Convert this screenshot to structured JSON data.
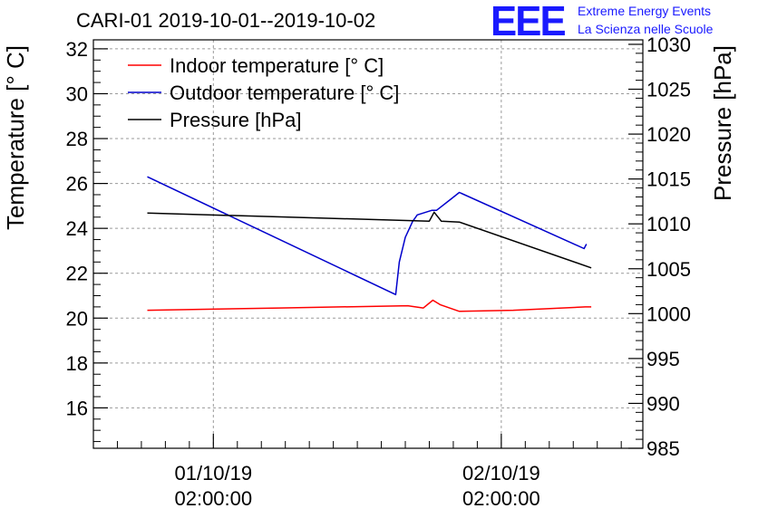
{
  "header": {
    "title": "CARI-01 2019-10-01--2019-10-02",
    "logo_text": "EEE",
    "logo_line1": "Extreme Energy Events",
    "logo_line2": "La Scienza nelle Scuole",
    "logo_color": "#1a1aff"
  },
  "chart_data": {
    "type": "line",
    "title": "CARI-01 2019-10-01--2019-10-02",
    "xlabel": "",
    "ylabel_left": "Temperature [° C]",
    "ylabel_right": "Pressure [hPa]",
    "x_unit": "hours since 2019-09-30 18:00",
    "xlim": [
      -2.0,
      43.8
    ],
    "ylim_left": [
      14.2,
      32.4
    ],
    "ylim_right": [
      985,
      1030.5
    ],
    "left_ticks": [
      16,
      18,
      20,
      22,
      24,
      26,
      28,
      30,
      32
    ],
    "right_ticks": [
      985,
      990,
      995,
      1000,
      1005,
      1010,
      1015,
      1020,
      1025,
      1030
    ],
    "x_ticks": [
      {
        "x": 8,
        "line1": "01/10/19",
        "line2": "02:00:00"
      },
      {
        "x": 32,
        "line1": "02/10/19",
        "line2": "02:00:00"
      }
    ],
    "grid": true,
    "legend_position": "top-left",
    "series": [
      {
        "name": "Indoor temperature [° C]",
        "color": "#ff0000",
        "axis": "left",
        "x": [
          2.5,
          13.5,
          24.2,
          25.5,
          26.3,
          26.9,
          28.5,
          33.0,
          39.0,
          39.5
        ],
        "y": [
          20.35,
          20.45,
          20.55,
          20.45,
          20.8,
          20.6,
          20.3,
          20.35,
          20.5,
          20.5
        ]
      },
      {
        "name": "Outdoor temperature [° C]",
        "color": "#0000cc",
        "axis": "left",
        "x": [
          2.5,
          23.2,
          23.5,
          24.0,
          24.6,
          25.0,
          26.2,
          26.6,
          27.8,
          28.5,
          38.9,
          39.1
        ],
        "y": [
          26.3,
          21.05,
          22.5,
          23.6,
          24.3,
          24.6,
          24.8,
          24.8,
          25.3,
          25.6,
          23.1,
          23.3
        ]
      },
      {
        "name": "Pressure [hPa]",
        "color": "#000000",
        "axis": "right",
        "x": [
          2.5,
          26.0,
          26.4,
          27.0,
          28.5,
          39.5
        ],
        "y": [
          1011.2,
          1010.3,
          1011.3,
          1010.3,
          1010.2,
          1005.1
        ]
      }
    ]
  }
}
